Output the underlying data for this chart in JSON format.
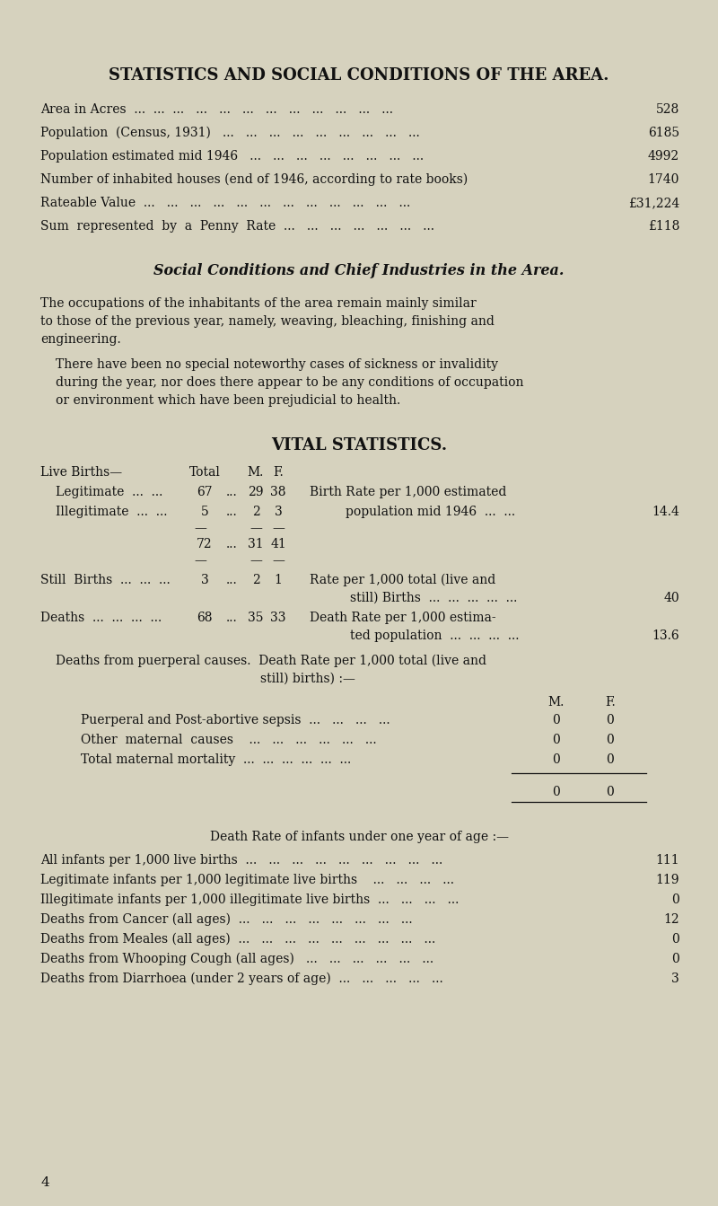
{
  "bg_color": "#d6d2be",
  "text_color": "#111111",
  "page_num": "4",
  "title": "STATISTICS AND SOCIAL CONDITIONS OF THE AREA.",
  "stats_lines": [
    {
      "label": "Area in Acres  ...  ...  ...   ...   ...   ...   ...   ...   ...   ...   ...   ...",
      "value": "528"
    },
    {
      "label": "Population  (Census, 1931)   ...   ...   ...   ...   ...   ...   ...   ...   ...",
      "value": "6185"
    },
    {
      "label": "Population estimated mid 1946   ...   ...   ...   ...   ...   ...   ...   ...",
      "value": "4992"
    },
    {
      "label": "Number of inhabited houses (end of 1946, according to rate books)",
      "value": "1740"
    },
    {
      "label": "Rateable Value  ...   ...   ...   ...   ...   ...   ...   ...   ...   ...   ...   ...  ",
      "value": "£31,224"
    },
    {
      "label": "Sum  represented  by  a  Penny  Rate  ...   ...   ...   ...   ...   ...   ...",
      "value": "£118"
    }
  ],
  "subheading": "Social Conditions and Chief Industries in the Area.",
  "para1_lines": [
    "The occupations of the inhabitants of the area remain mainly similar",
    "to those of the previous year, namely, weaving, bleaching, finishing and",
    "engineering."
  ],
  "para2_lines": [
    "There have been no special noteworthy cases of sickness or invalidity",
    "during the year, nor does there appear to be any conditions of occupation",
    "or environment which have been prejudicial to health."
  ],
  "vital_heading": "VITAL STATISTICS.",
  "infant_heading": "Death Rate of infants under one year of age :—",
  "infant_rows": [
    {
      "label": "All infants per 1,000 live births  ...   ...   ...   ...   ...   ...   ...   ...   ...",
      "value": "111"
    },
    {
      "label": "Legitimate infants per 1,000 legitimate live births    ...   ...   ...   ...",
      "value": "119"
    },
    {
      "label": "Illegitimate infants per 1,000 illegitimate live births  ...   ...   ...   ...",
      "value": "0"
    },
    {
      "label": "Deaths from Cancer (all ages)  ...   ...   ...   ...   ...   ...   ...   ...",
      "value": "12"
    },
    {
      "label": "Deaths from Meales (all ages)  ...   ...   ...   ...   ...   ...   ...   ...   ...",
      "value": "0"
    },
    {
      "label": "Deaths from Whooping Cough (all ages)   ...   ...   ...   ...   ...   ...",
      "value": "0"
    },
    {
      "label": "Deaths from Diarrhoea (under 2 years of age)  ...   ...   ...   ...   ...",
      "value": "3"
    }
  ]
}
